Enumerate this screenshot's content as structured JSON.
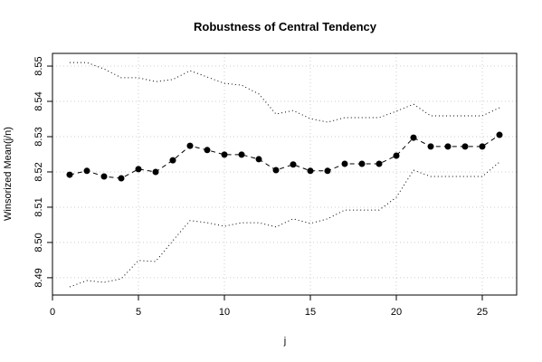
{
  "chart_data": {
    "type": "line",
    "title": "Robustness of Central Tendency",
    "x_label": "j",
    "y_label": "Winsorized Mean(j/n)",
    "x": [
      1,
      2,
      3,
      4,
      5,
      6,
      7,
      8,
      9,
      10,
      11,
      12,
      13,
      14,
      15,
      16,
      17,
      18,
      19,
      20,
      21,
      22,
      23,
      24,
      25,
      26
    ],
    "series": [
      {
        "color": "#000000",
        "style": "dashed-points",
        "values": [
          8.5192,
          8.5203,
          8.5187,
          8.5182,
          8.5208,
          8.52,
          8.5233,
          8.5274,
          8.5262,
          8.5249,
          8.5249,
          8.5236,
          8.5205,
          8.5221,
          8.5203,
          8.5203,
          8.5223,
          8.5223,
          8.5223,
          8.5246,
          8.5297,
          8.5272,
          8.5272,
          8.5272,
          8.5272,
          8.5305
        ]
      },
      {
        "color": "#000000",
        "style": "dotted",
        "values": [
          8.551,
          8.551,
          8.5492,
          8.5467,
          8.5467,
          8.5456,
          8.5462,
          8.5487,
          8.5469,
          8.5451,
          8.5446,
          8.5421,
          8.5364,
          8.5374,
          8.5351,
          8.5341,
          8.5354,
          8.5354,
          8.5354,
          8.5372,
          8.5392,
          8.5359,
          8.5359,
          8.5359,
          8.5359,
          8.5382
        ]
      },
      {
        "color": "#000000",
        "style": "dotted",
        "values": [
          8.4874,
          8.4892,
          8.4887,
          8.4897,
          8.4949,
          8.4946,
          8.5005,
          8.5062,
          8.5056,
          8.5046,
          8.5056,
          8.5056,
          8.5044,
          8.5067,
          8.5054,
          8.5067,
          8.5092,
          8.5092,
          8.5092,
          8.5128,
          8.5205,
          8.5187,
          8.5187,
          8.5187,
          8.5187,
          8.5228
        ]
      }
    ],
    "xlim": [
      0,
      27
    ],
    "xticks": [
      0,
      5,
      10,
      15,
      20,
      25
    ],
    "ylim": [
      8.4851,
      8.5536
    ],
    "yticks": [
      {
        "value": 8.49,
        "label": "8.49"
      },
      {
        "value": 8.5,
        "label": "8.50"
      },
      8.51,
      8.52,
      8.53,
      8.54,
      8.55
    ],
    "grid": true
  }
}
